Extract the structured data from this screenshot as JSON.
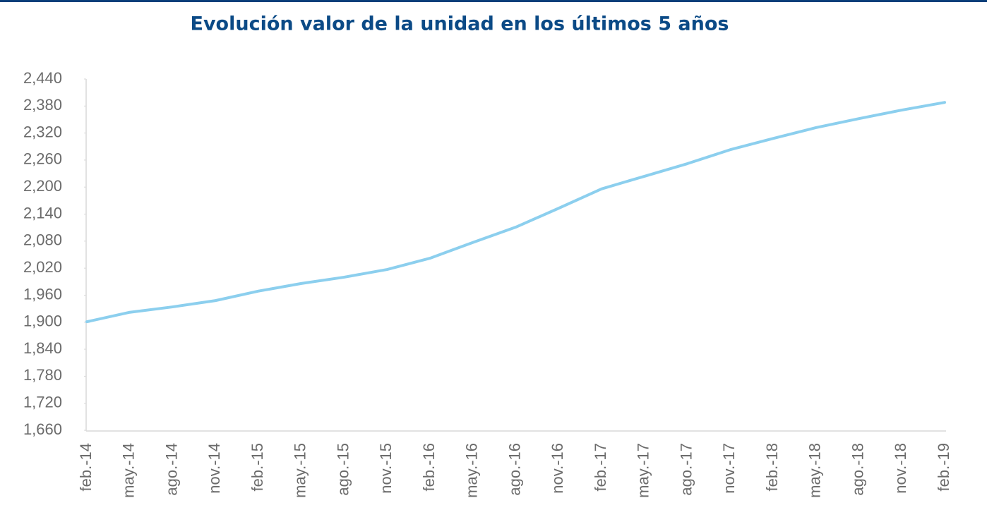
{
  "chart_data": {
    "type": "line",
    "title": "Evolución valor de la unidad en los últimos 5 años",
    "categories": [
      "feb.-14",
      "may.-14",
      "ago.-14",
      "nov.-14",
      "feb.-15",
      "may.-15",
      "ago.-15",
      "nov.-15",
      "feb.-16",
      "may.-16",
      "ago.-16",
      "nov.-16",
      "feb.-17",
      "may.-17",
      "ago.-17",
      "nov.-17",
      "feb.-18",
      "may.-18",
      "ago.-18",
      "nov.-18",
      "feb.-19"
    ],
    "series": [
      {
        "color": "#8ccfee",
        "values": [
          1901,
          1922,
          1934,
          1948,
          1969,
          1986,
          2000,
          2017,
          2042,
          2077,
          2111,
          2153,
          2196,
          2224,
          2252,
          2283,
          2308,
          2332,
          2352,
          2371,
          2388
        ]
      }
    ],
    "ylim": [
      1660,
      2440
    ],
    "yticks": [
      {
        "value": 1660,
        "label": "1,660"
      },
      {
        "value": 1720,
        "label": "1,720"
      },
      {
        "value": 1780,
        "label": "1,780"
      },
      {
        "value": 1840,
        "label": "1,840"
      },
      {
        "value": 1900,
        "label": "1,900"
      },
      {
        "value": 1960,
        "label": "1,960"
      },
      {
        "value": 2020,
        "label": "2,020"
      },
      {
        "value": 2080,
        "label": "2,080"
      },
      {
        "value": 2140,
        "label": "2,140"
      },
      {
        "value": 2200,
        "label": "2,200"
      },
      {
        "value": 2260,
        "label": "2,260"
      },
      {
        "value": 2320,
        "label": "2,320"
      },
      {
        "value": 2380,
        "label": "2,380"
      },
      {
        "value": 2440,
        "label": "2,440"
      }
    ],
    "grid": false
  }
}
